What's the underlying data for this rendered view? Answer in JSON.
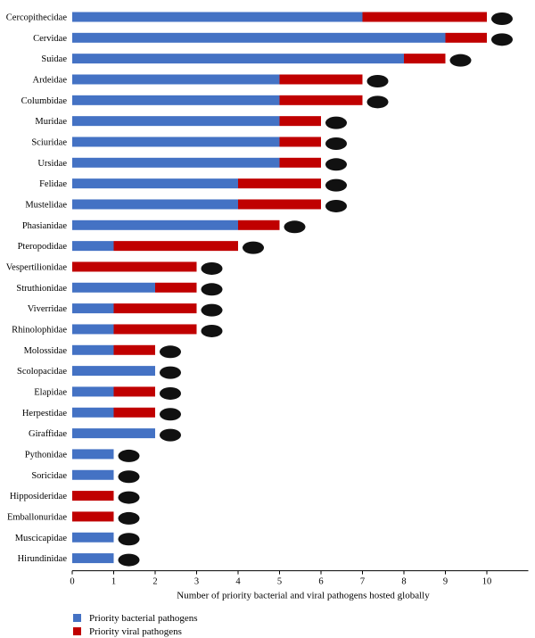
{
  "colors": {
    "bacterial": "#4472C4",
    "viral": "#C00000",
    "axis": "#000000",
    "silhouette": "#111111"
  },
  "chart_data": {
    "type": "bar",
    "orientation": "horizontal",
    "stacked": true,
    "title": "",
    "xlabel": "Number of priority bacterial and viral pathogens hosted globally",
    "ylabel": "",
    "xlim": [
      0,
      11
    ],
    "xticks": [
      0,
      1,
      2,
      3,
      4,
      5,
      6,
      7,
      8,
      9,
      10
    ],
    "grid": false,
    "legend_position": "bottom-left",
    "categories": [
      "Cercopithecidae",
      "Cervidae",
      "Suidae",
      "Ardeidae",
      "Columbidae",
      "Muridae",
      "Sciuridae",
      "Ursidae",
      "Felidae",
      "Mustelidae",
      "Phasianidae",
      "Pteropodidae",
      "Vespertilionidae",
      "Struthionidae",
      "Viverridae",
      "Rhinolophidae",
      "Molossidae",
      "Scolopacidae",
      "Elapidae",
      "Herpestidae",
      "Giraffidae",
      "Pythonidae",
      "Soricidae",
      "Hipposideridae",
      "Emballonuridae",
      "Muscicapidae",
      "Hirundinidae"
    ],
    "series": [
      {
        "name": "Priority bacterial pathogens",
        "values": [
          7,
          9,
          8,
          5,
          5,
          5,
          5,
          5,
          4,
          4,
          4,
          1,
          0,
          2,
          1,
          1,
          1,
          2,
          1,
          1,
          2,
          1,
          1,
          0,
          0,
          1,
          1
        ]
      },
      {
        "name": "Priority viral pathogens",
        "values": [
          3,
          1,
          1,
          2,
          2,
          1,
          1,
          1,
          2,
          2,
          1,
          3,
          3,
          1,
          2,
          2,
          1,
          0,
          1,
          1,
          0,
          0,
          0,
          1,
          1,
          0,
          0
        ]
      }
    ],
    "silhouettes": [
      "monkey-icon",
      "deer-icon",
      "boar-icon",
      "heron-icon",
      "pigeon-icon",
      "rat-icon",
      "squirrel-icon",
      "bear-icon",
      "cat-icon",
      "badger-icon",
      "pheasant-icon",
      "flying-fox-icon",
      "bat-icon",
      "ostrich-icon",
      "civet-icon",
      "hanging-bat-icon",
      "free-tailed-bat-icon",
      "sandpiper-icon",
      "snake-icon",
      "mongoose-icon",
      "giraffe-icon",
      "python-icon",
      "shrew-icon",
      "leaf-nosed-bat-icon",
      "sheath-tailed-bat-icon",
      "flycatcher-icon",
      "swallow-icon"
    ]
  }
}
